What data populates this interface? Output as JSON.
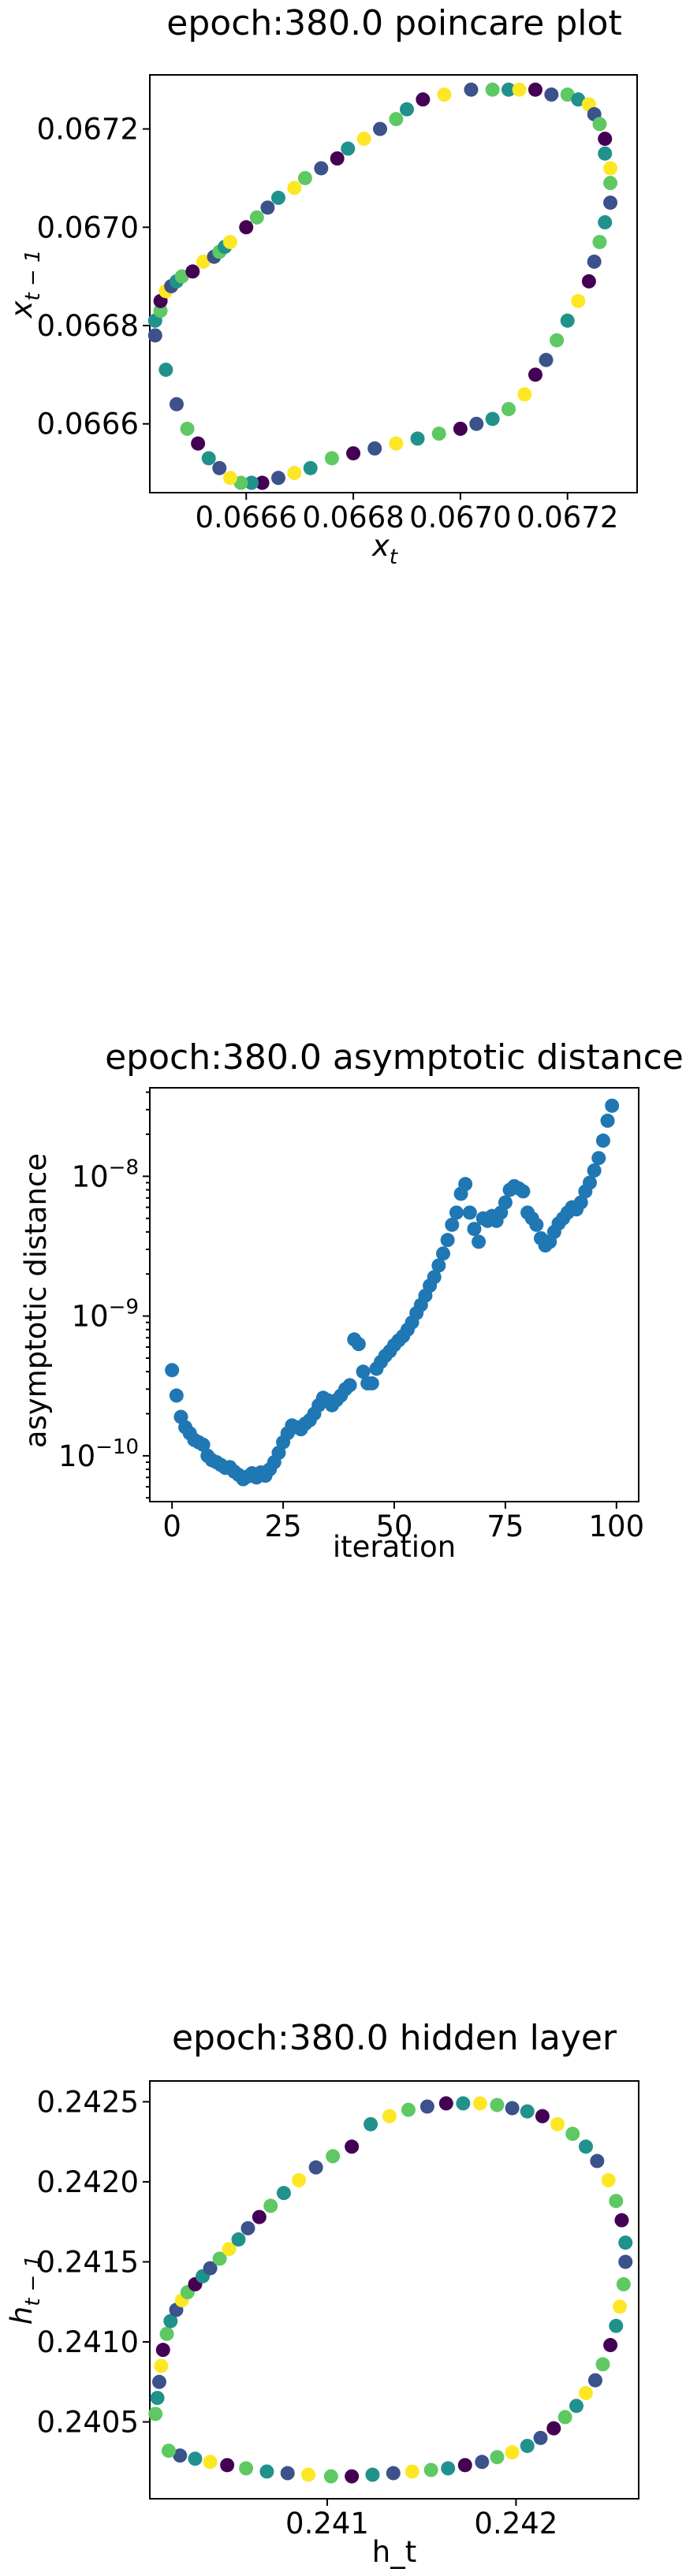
{
  "chart_data": [
    {
      "type": "scatter",
      "title": "epoch:380.0 poincare plot",
      "xlabel_main": "x",
      "xlabel_sub": "t",
      "ylabel_main": "x",
      "ylabel_sub": "t − 1",
      "xlim": [
        0.06642,
        0.06733
      ],
      "ylim": [
        0.06646,
        0.06731
      ],
      "xticks": [
        0.0666,
        0.0668,
        0.067,
        0.0672
      ],
      "xticklabels": [
        "0.0666",
        "0.0668",
        "0.0670",
        "0.0672"
      ],
      "yticks": [
        0.0666,
        0.0668,
        0.067,
        0.0672
      ],
      "yticklabels": [
        "0.0666",
        "0.0668",
        "0.0670",
        "0.0672"
      ],
      "colormap": [
        "#440154",
        "#3b528b",
        "#21918c",
        "#5ec962",
        "#fde725"
      ],
      "x": [
        0.06643,
        0.06643,
        0.06644,
        0.06644,
        0.06645,
        0.06646,
        0.06647,
        0.06648,
        0.0665,
        0.06652,
        0.06654,
        0.06655,
        0.06656,
        0.06657,
        0.0666,
        0.06662,
        0.06664,
        0.06666,
        0.06669,
        0.06671,
        0.06674,
        0.06677,
        0.06679,
        0.06682,
        0.06685,
        0.06688,
        0.0669,
        0.06693,
        0.06697,
        0.06702,
        0.06706,
        0.06709,
        0.06711,
        0.06714,
        0.06717,
        0.0672,
        0.06722,
        0.06724,
        0.06725,
        0.06726,
        0.06727,
        0.06727,
        0.06728,
        0.06728,
        0.06728,
        0.06727,
        0.06726,
        0.06725,
        0.06724,
        0.06722,
        0.0672,
        0.06718,
        0.06716,
        0.06714,
        0.06712,
        0.06709,
        0.06706,
        0.06703,
        0.067,
        0.06696,
        0.06692,
        0.06688,
        0.06684,
        0.0668,
        0.06676,
        0.06672,
        0.06669,
        0.06666,
        0.06663,
        0.06661,
        0.06659,
        0.06657,
        0.06655,
        0.06653,
        0.06651,
        0.06649,
        0.06647,
        0.06645
      ],
      "y": [
        0.06678,
        0.06681,
        0.06683,
        0.06685,
        0.06687,
        0.06688,
        0.06689,
        0.0669,
        0.06691,
        0.06693,
        0.06694,
        0.06695,
        0.06696,
        0.06697,
        0.067,
        0.06702,
        0.06704,
        0.06706,
        0.06708,
        0.0671,
        0.06712,
        0.06714,
        0.06716,
        0.06718,
        0.0672,
        0.06722,
        0.06724,
        0.06726,
        0.06727,
        0.06728,
        0.06728,
        0.06728,
        0.06728,
        0.06728,
        0.06727,
        0.06727,
        0.06726,
        0.06725,
        0.06723,
        0.06721,
        0.06718,
        0.06715,
        0.06712,
        0.06709,
        0.06705,
        0.06701,
        0.06697,
        0.06693,
        0.06689,
        0.06685,
        0.06681,
        0.06677,
        0.06673,
        0.0667,
        0.06666,
        0.06663,
        0.06661,
        0.0666,
        0.06659,
        0.06658,
        0.06657,
        0.06656,
        0.06655,
        0.06654,
        0.06653,
        0.06651,
        0.0665,
        0.06649,
        0.06648,
        0.06648,
        0.06648,
        0.06649,
        0.06651,
        0.06653,
        0.06656,
        0.06659,
        0.06664,
        0.06671
      ],
      "c": [
        1,
        2,
        3,
        0,
        4,
        1,
        2,
        3,
        0,
        4,
        1,
        3,
        2,
        4,
        0,
        3,
        1,
        2,
        4,
        3,
        1,
        0,
        2,
        4,
        1,
        3,
        2,
        0,
        4,
        1,
        3,
        2,
        4,
        0,
        1,
        3,
        2,
        4,
        1,
        3,
        0,
        2,
        4,
        3,
        1,
        2,
        3,
        1,
        0,
        4,
        2,
        3,
        1,
        0,
        4,
        3,
        2,
        1,
        0,
        3,
        2,
        4,
        1,
        0,
        3,
        2,
        4,
        1,
        0,
        2,
        3,
        4,
        1,
        2,
        0,
        3,
        1,
        2
      ]
    },
    {
      "type": "scatter",
      "title": "epoch:380.0 asymptotic distance",
      "xlabel": "iteration",
      "ylabel": "asymptotic distance",
      "yscale": "log",
      "xlim": [
        -5,
        105
      ],
      "ylim": [
        4.7e-11,
        4.3e-08
      ],
      "xticks": [
        0,
        25,
        50,
        75,
        100
      ],
      "xticklabels": [
        "0",
        "25",
        "50",
        "75",
        "100"
      ],
      "yticks": [
        1e-10,
        1e-09,
        1e-08
      ],
      "ytick_base": [
        "10",
        "10",
        "10"
      ],
      "ytick_exp": [
        "−10",
        "−9",
        "−8"
      ],
      "color": "#1f77b4",
      "x": [
        0,
        1,
        2,
        3,
        4,
        5,
        6,
        7,
        8,
        9,
        10,
        11,
        12,
        13,
        14,
        15,
        16,
        17,
        18,
        19,
        20,
        21,
        22,
        23,
        24,
        25,
        26,
        27,
        28,
        29,
        30,
        31,
        32,
        33,
        34,
        35,
        36,
        37,
        38,
        39,
        40,
        41,
        42,
        43,
        44,
        45,
        46,
        47,
        48,
        49,
        50,
        51,
        52,
        53,
        54,
        55,
        56,
        57,
        58,
        59,
        60,
        61,
        62,
        63,
        64,
        65,
        66,
        67,
        68,
        69,
        70,
        71,
        72,
        73,
        74,
        75,
        76,
        77,
        78,
        79,
        80,
        81,
        82,
        83,
        84,
        85,
        86,
        87,
        88,
        89,
        90,
        91,
        92,
        93,
        94,
        95,
        96,
        97,
        98,
        99
      ],
      "y": [
        4.1e-10,
        2.7e-10,
        1.9e-10,
        1.6e-10,
        1.45e-10,
        1.3e-10,
        1.25e-10,
        1.2e-10,
        1e-10,
        9.3e-11,
        9e-11,
        8.6e-11,
        8.2e-11,
        8.3e-11,
        7.7e-11,
        7.3e-11,
        6.8e-11,
        7.1e-11,
        7.5e-11,
        7e-11,
        7.6e-11,
        7.2e-11,
        8e-11,
        9e-11,
        1.05e-10,
        1.25e-10,
        1.45e-10,
        1.65e-10,
        1.6e-10,
        1.55e-10,
        1.7e-10,
        1.8e-10,
        2e-10,
        2.3e-10,
        2.6e-10,
        2.5e-10,
        2.3e-10,
        2.5e-10,
        2.7e-10,
        3e-10,
        3.2e-10,
        6.8e-10,
        6.3e-10,
        4e-10,
        3.3e-10,
        3.3e-10,
        4.2e-10,
        4.7e-10,
        5.2e-10,
        5.6e-10,
        6.2e-10,
        6.7e-10,
        7.2e-10,
        8e-10,
        9e-10,
        1.05e-09,
        1.2e-09,
        1.4e-09,
        1.65e-09,
        1.9e-09,
        2.3e-09,
        2.8e-09,
        3.5e-09,
        4.5e-09,
        5.5e-09,
        7.5e-09,
        8.8e-09,
        5.5e-09,
        4.2e-09,
        3.4e-09,
        5e-09,
        4.8e-09,
        5.2e-09,
        4.8e-09,
        5.5e-09,
        6.5e-09,
        8e-09,
        8.5e-09,
        8.2e-09,
        7.8e-09,
        5.5e-09,
        5e-09,
        4.5e-09,
        3.6e-09,
        3.2e-09,
        3.4e-09,
        4e-09,
        4.6e-09,
        5e-09,
        5.5e-09,
        6e-09,
        5.8e-09,
        6.5e-09,
        7.8e-09,
        9e-09,
        1.1e-08,
        1.35e-08,
        1.8e-08,
        2.5e-08,
        3.2e-08
      ]
    },
    {
      "type": "scatter",
      "title": "epoch:380.0 hidden layer",
      "xlabel": "h_t",
      "ylabel_main": "h",
      "ylabel_sub": "t − 1",
      "xlim": [
        0.24006,
        0.24265
      ],
      "ylim": [
        0.24002,
        0.24263
      ],
      "xticks": [
        0.241,
        0.242
      ],
      "xticklabels": [
        "0.241",
        "0.242"
      ],
      "yticks": [
        0.2405,
        0.241,
        0.2415,
        0.242,
        0.2425
      ],
      "yticklabels": [
        "0.2405",
        "0.2410",
        "0.2415",
        "0.2420",
        "0.2425"
      ],
      "colormap": [
        "#440154",
        "#3b528b",
        "#21918c",
        "#5ec962",
        "#fde725"
      ],
      "x": [
        0.24009,
        0.2401,
        0.24011,
        0.24012,
        0.24013,
        0.24015,
        0.24017,
        0.2402,
        0.24023,
        0.24026,
        0.2403,
        0.24034,
        0.24038,
        0.24043,
        0.24048,
        0.24053,
        0.24058,
        0.24064,
        0.2407,
        0.24077,
        0.24085,
        0.24094,
        0.24103,
        0.24113,
        0.24123,
        0.24133,
        0.24143,
        0.24153,
        0.24163,
        0.24172,
        0.24181,
        0.2419,
        0.24198,
        0.24206,
        0.24214,
        0.24222,
        0.2423,
        0.24237,
        0.24243,
        0.24249,
        0.24253,
        0.24256,
        0.24258,
        0.24258,
        0.24257,
        0.24255,
        0.24253,
        0.2425,
        0.24246,
        0.24242,
        0.24237,
        0.24232,
        0.24226,
        0.2422,
        0.24213,
        0.24206,
        0.24198,
        0.2419,
        0.24182,
        0.24173,
        0.24164,
        0.24155,
        0.24145,
        0.24135,
        0.24124,
        0.24113,
        0.24102,
        0.2409,
        0.24079,
        0.24068,
        0.24057,
        0.24047,
        0.24038,
        0.2403,
        0.24022,
        0.24016
      ],
      "y": [
        0.24055,
        0.24065,
        0.24075,
        0.24085,
        0.24095,
        0.24105,
        0.24113,
        0.2412,
        0.24126,
        0.24131,
        0.24136,
        0.24141,
        0.24146,
        0.24152,
        0.24158,
        0.24164,
        0.24171,
        0.24178,
        0.24185,
        0.24193,
        0.24201,
        0.24209,
        0.24216,
        0.24222,
        0.24236,
        0.24241,
        0.24245,
        0.24247,
        0.24249,
        0.24249,
        0.24249,
        0.24248,
        0.24246,
        0.24244,
        0.24241,
        0.24236,
        0.2423,
        0.24222,
        0.24213,
        0.24201,
        0.24188,
        0.24176,
        0.24162,
        0.2415,
        0.24136,
        0.24122,
        0.2411,
        0.24098,
        0.24086,
        0.24076,
        0.24068,
        0.2406,
        0.24053,
        0.24046,
        0.2404,
        0.24035,
        0.24031,
        0.24028,
        0.24025,
        0.24023,
        0.24021,
        0.2402,
        0.24019,
        0.24018,
        0.24017,
        0.24016,
        0.24016,
        0.24017,
        0.24018,
        0.24019,
        0.24021,
        0.24023,
        0.24025,
        0.24027,
        0.24029,
        0.24032
      ],
      "c": [
        3,
        2,
        1,
        4,
        0,
        3,
        2,
        1,
        4,
        3,
        0,
        2,
        1,
        3,
        4,
        2,
        1,
        0,
        3,
        2,
        4,
        1,
        3,
        0,
        2,
        4,
        3,
        1,
        0,
        2,
        4,
        3,
        1,
        2,
        0,
        4,
        3,
        2,
        1,
        4,
        3,
        0,
        2,
        1,
        3,
        4,
        2,
        0,
        3,
        1,
        4,
        2,
        3,
        0,
        1,
        2,
        4,
        3,
        1,
        0,
        2,
        3,
        4,
        1,
        2,
        0,
        3,
        4,
        1,
        2,
        3,
        0,
        4,
        2,
        1,
        3
      ]
    }
  ]
}
